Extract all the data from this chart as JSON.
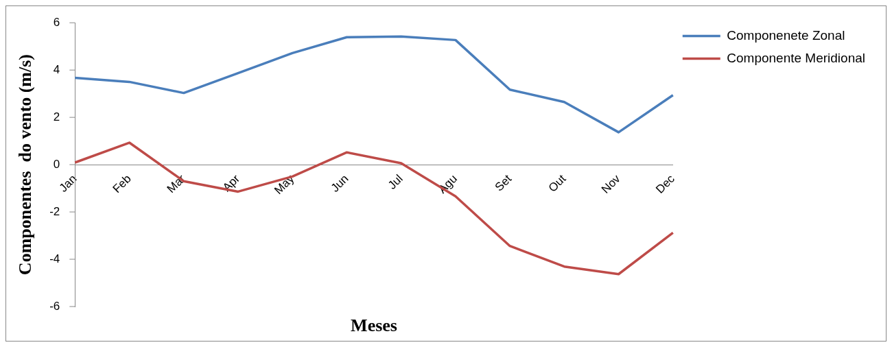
{
  "chart_data": {
    "type": "line",
    "xlabel": "Meses",
    "ylabel": "Componentes  do vento (m/s)",
    "categories": [
      "Jan",
      "Feb",
      "Mar",
      "Apr",
      "May",
      "Jun",
      "Jul",
      "Agu",
      "Set",
      "Out",
      "Nov",
      "Dec"
    ],
    "series": [
      {
        "name": "Componenete Zonal",
        "color": "#4a7ebb",
        "values": [
          3.67,
          3.5,
          3.03,
          3.87,
          4.72,
          5.39,
          5.42,
          5.27,
          3.17,
          2.65,
          1.37,
          2.94
        ]
      },
      {
        "name": "Componente Meridional",
        "color": "#be4b48",
        "values": [
          0.09,
          0.93,
          -0.7,
          -1.14,
          -0.5,
          0.52,
          0.06,
          -1.34,
          -3.44,
          -4.31,
          -4.63,
          -2.88
        ]
      }
    ],
    "ylim": [
      -6,
      6
    ],
    "yticks": [
      -6,
      -4,
      -2,
      0,
      2,
      4,
      6
    ],
    "grid": false,
    "legend": "top right",
    "marker": "none",
    "line_style": "solid"
  }
}
